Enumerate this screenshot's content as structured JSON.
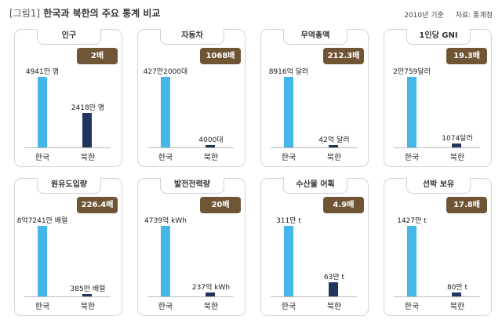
{
  "header": {
    "tag": "[그림1]",
    "title": "한국과 북한의 주요 통계 비교",
    "year": "2010년 기준",
    "source": "자료: 통계청"
  },
  "chart_data": [
    {
      "type": "bar",
      "title": "인구",
      "ratio": "2배",
      "categories": [
        "한국",
        "북한"
      ],
      "labels": [
        "4941만 명",
        "2418만 명"
      ],
      "values": [
        4941,
        2418
      ],
      "unit": "만 명"
    },
    {
      "type": "bar",
      "title": "자동차",
      "ratio": "1068배",
      "categories": [
        "한국",
        "북한"
      ],
      "labels": [
        "427만2000대",
        "4000대"
      ],
      "values": [
        4272000,
        4000
      ],
      "unit": "대"
    },
    {
      "type": "bar",
      "title": "무역총액",
      "ratio": "212.3배",
      "categories": [
        "한국",
        "북한"
      ],
      "labels": [
        "8916억 달러",
        "42억 달러"
      ],
      "values": [
        8916,
        42
      ],
      "unit": "억 달러"
    },
    {
      "type": "bar",
      "title": "1인당 GNI",
      "ratio": "19.3배",
      "categories": [
        "한국",
        "북한"
      ],
      "labels": [
        "2만759달러",
        "1074달러"
      ],
      "values": [
        20759,
        1074
      ],
      "unit": "달러"
    },
    {
      "type": "bar",
      "title": "원유도입량",
      "ratio": "226.4배",
      "categories": [
        "한국",
        "북한"
      ],
      "labels": [
        "8억7241만 배럴",
        "385만 배럴"
      ],
      "values": [
        87241,
        385
      ],
      "unit": "만 배럴"
    },
    {
      "type": "bar",
      "title": "발전전력량",
      "ratio": "20배",
      "categories": [
        "한국",
        "북한"
      ],
      "labels": [
        "4739억 kWh",
        "237억 kWh"
      ],
      "values": [
        4739,
        237
      ],
      "unit": "억 kWh"
    },
    {
      "type": "bar",
      "title": "수산물 어획",
      "ratio": "4.9배",
      "categories": [
        "한국",
        "북한"
      ],
      "labels": [
        "311만 t",
        "63만 t"
      ],
      "values": [
        311,
        63
      ],
      "unit": "만 t"
    },
    {
      "type": "bar",
      "title": "선박 보유",
      "ratio": "17.8배",
      "categories": [
        "한국",
        "북한"
      ],
      "labels": [
        "1427만 t",
        "80만 t"
      ],
      "values": [
        1427,
        80
      ],
      "unit": "만 t"
    }
  ],
  "colors": {
    "south_bar": "#45b6e8",
    "north_bar": "#22355c",
    "ratio_badge": "#6f5533"
  }
}
